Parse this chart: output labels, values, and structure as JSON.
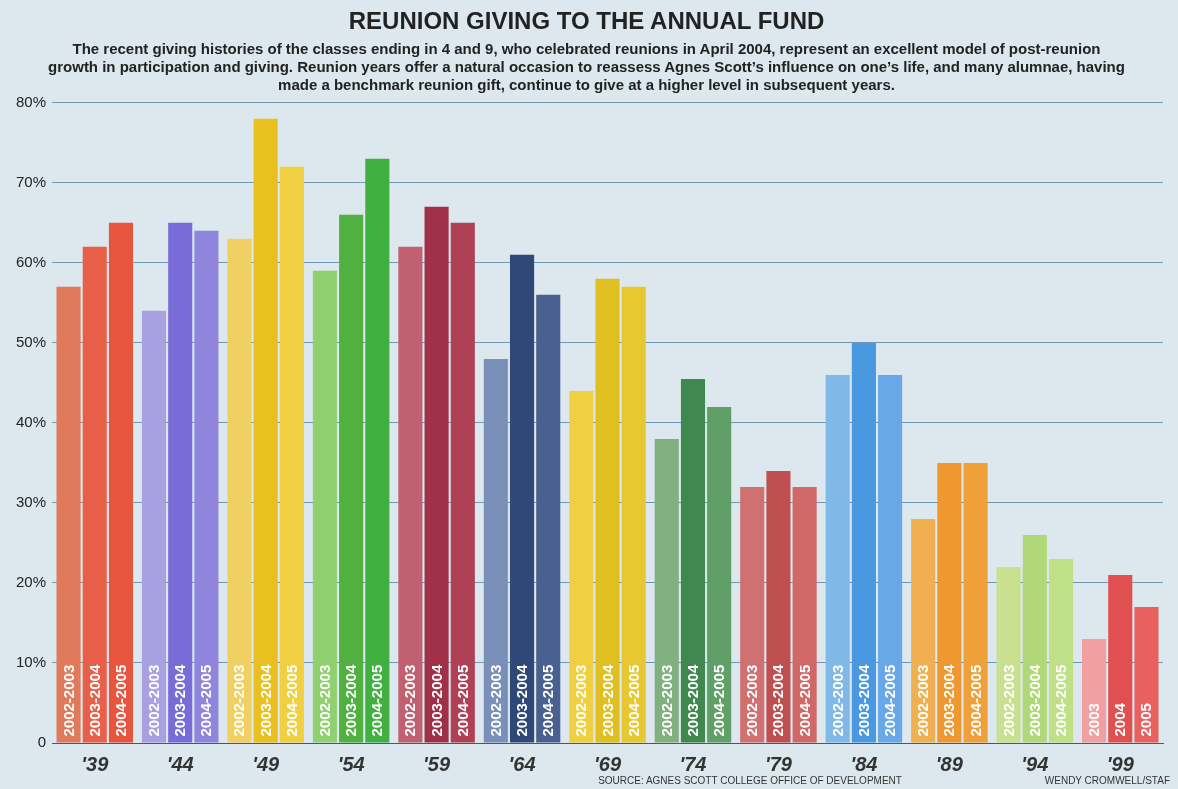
{
  "chart_data": {
    "type": "bar",
    "title": "REUNION GIVING TO THE ANNUAL FUND",
    "subtitle": "The recent giving histories of the classes ending in 4 and 9, who celebrated reunions in April 2004, represent an excellent model of post-reunion growth in participation and giving. Reunion years offer a natural occasion to reassess Agnes Scott’s influence on one’s life, and many alumnae, having made a benchmark reunion gift, continue to give at a higher level in subsequent years.",
    "categories": [
      "'39",
      "'44",
      "'49",
      "'54",
      "'59",
      "'64",
      "'69",
      "'74",
      "'79",
      "'84",
      "'89",
      "'94",
      "'99"
    ],
    "series": [
      {
        "name": "2002-2003",
        "colors": [
          "#e07a5a",
          "#a8a0e0",
          "#f0d060",
          "#90d070",
          "#c06070",
          "#7a90b8",
          "#f0d040",
          "#80b080",
          "#d07070",
          "#80b8e8",
          "#f0b050",
          "#c8e090",
          "#f0a0a0"
        ],
        "values": [
          57,
          54,
          63,
          59,
          62,
          48,
          44,
          38,
          32,
          46,
          28,
          22,
          13
        ]
      },
      {
        "name": "2003-2004",
        "colors": [
          "#e8604a",
          "#7a6cd8",
          "#e8c020",
          "#50b040",
          "#a03048",
          "#304878",
          "#e0c020",
          "#408850",
          "#c05050",
          "#4a98e0",
          "#f09830",
          "#b0d878",
          "#e05050"
        ],
        "values": [
          62,
          65,
          78,
          66,
          67,
          61,
          58,
          45.5,
          34,
          50,
          35,
          26,
          21
        ]
      },
      {
        "name": "2004-2005",
        "colors": [
          "#e8553e",
          "#8f85dc",
          "#f0d040",
          "#40b040",
          "#b04055",
          "#4a6090",
          "#e8c830",
          "#60a068",
          "#d06868",
          "#68a8e8",
          "#f0a038",
          "#c0e088",
          "#e86060"
        ],
        "values": [
          65,
          64,
          72,
          73,
          65,
          56,
          57,
          42,
          32,
          46,
          35,
          23,
          17
        ]
      }
    ],
    "ylim": [
      0,
      80
    ],
    "yticks": [
      {
        "value": 0,
        "label": "0"
      },
      {
        "value": 10,
        "label": "10%"
      },
      {
        "value": 20,
        "label": "20%"
      },
      {
        "value": 30,
        "label": "30%"
      },
      {
        "value": 40,
        "label": "40%"
      },
      {
        "value": 50,
        "label": "50%"
      },
      {
        "value": 60,
        "label": "60%"
      },
      {
        "value": 70,
        "label": "70%"
      },
      {
        "value": 80,
        "label": "80%"
      }
    ],
    "grid": "y",
    "annotations": [
      "2003",
      "2004",
      "2005",
      "SOURCE: AGNES SCOTT COLLEGE OFFICE OF DEVELOPMENT",
      "WENDY CROMWELL/STAF"
    ]
  }
}
